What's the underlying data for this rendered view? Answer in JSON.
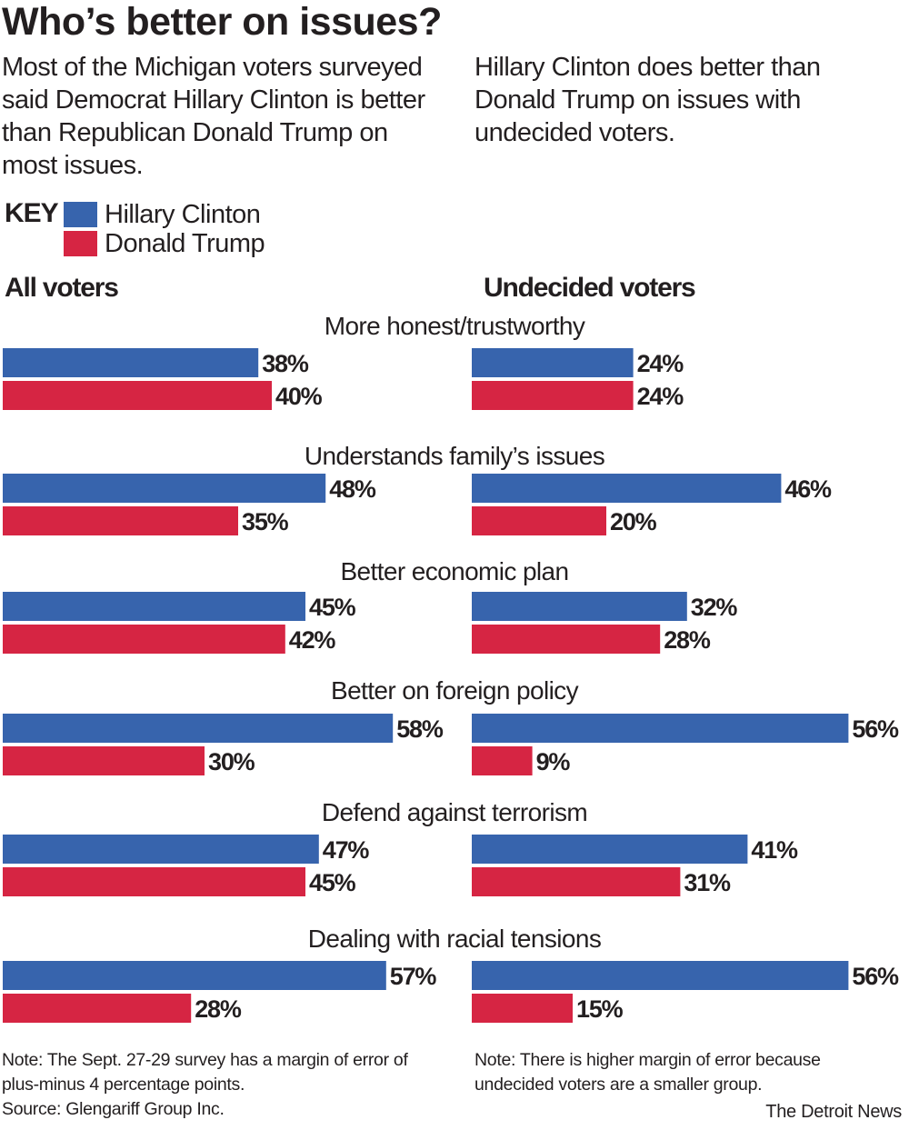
{
  "header": {
    "title": "Who’s better on issues?",
    "intro_left": "Most of the Michigan voters surveyed said Democrat Hillary Clinton is better than Republican Donald Trump on most issues.",
    "intro_right": "Hillary Clinton does better than Donald Trump on issues with undecided voters."
  },
  "key": {
    "label": "KEY",
    "items": [
      {
        "name": "Hillary Clinton",
        "color": "#3764ad"
      },
      {
        "name": "Donald Trump",
        "color": "#d62543"
      }
    ]
  },
  "sections": {
    "all": "All voters",
    "undecided": "Undecided voters"
  },
  "chart_data": {
    "type": "bar",
    "orientation": "horizontal",
    "title": "Who’s better on issues?",
    "categories": [
      "More honest/trustworthy",
      "Understands family’s issues",
      "Better economic plan",
      "Better on foreign policy",
      "Defend against terrorism",
      "Dealing with racial tensions"
    ],
    "panels": [
      {
        "name": "All voters",
        "series": [
          {
            "name": "Hillary Clinton",
            "color": "#3764ad",
            "values": [
              38,
              48,
              45,
              58,
              47,
              57
            ]
          },
          {
            "name": "Donald Trump",
            "color": "#d62543",
            "values": [
              40,
              35,
              42,
              30,
              45,
              28
            ]
          }
        ]
      },
      {
        "name": "Undecided voters",
        "series": [
          {
            "name": "Hillary Clinton",
            "color": "#3764ad",
            "values": [
              24,
              46,
              32,
              56,
              41,
              56
            ]
          },
          {
            "name": "Donald Trump",
            "color": "#d62543",
            "values": [
              24,
              20,
              28,
              9,
              31,
              15
            ]
          }
        ]
      }
    ],
    "value_suffix": "%",
    "xlim": [
      0,
      60
    ],
    "grid": false
  },
  "notes": {
    "left_note": "Note: The Sept. 27-29 survey has a margin of error of plus-minus 4 percentage points.",
    "source": "Source: Glengariff Group Inc.",
    "right_note": "Note: There is higher margin of error because undecided voters are a smaller group.",
    "credit": "The Detroit News"
  }
}
